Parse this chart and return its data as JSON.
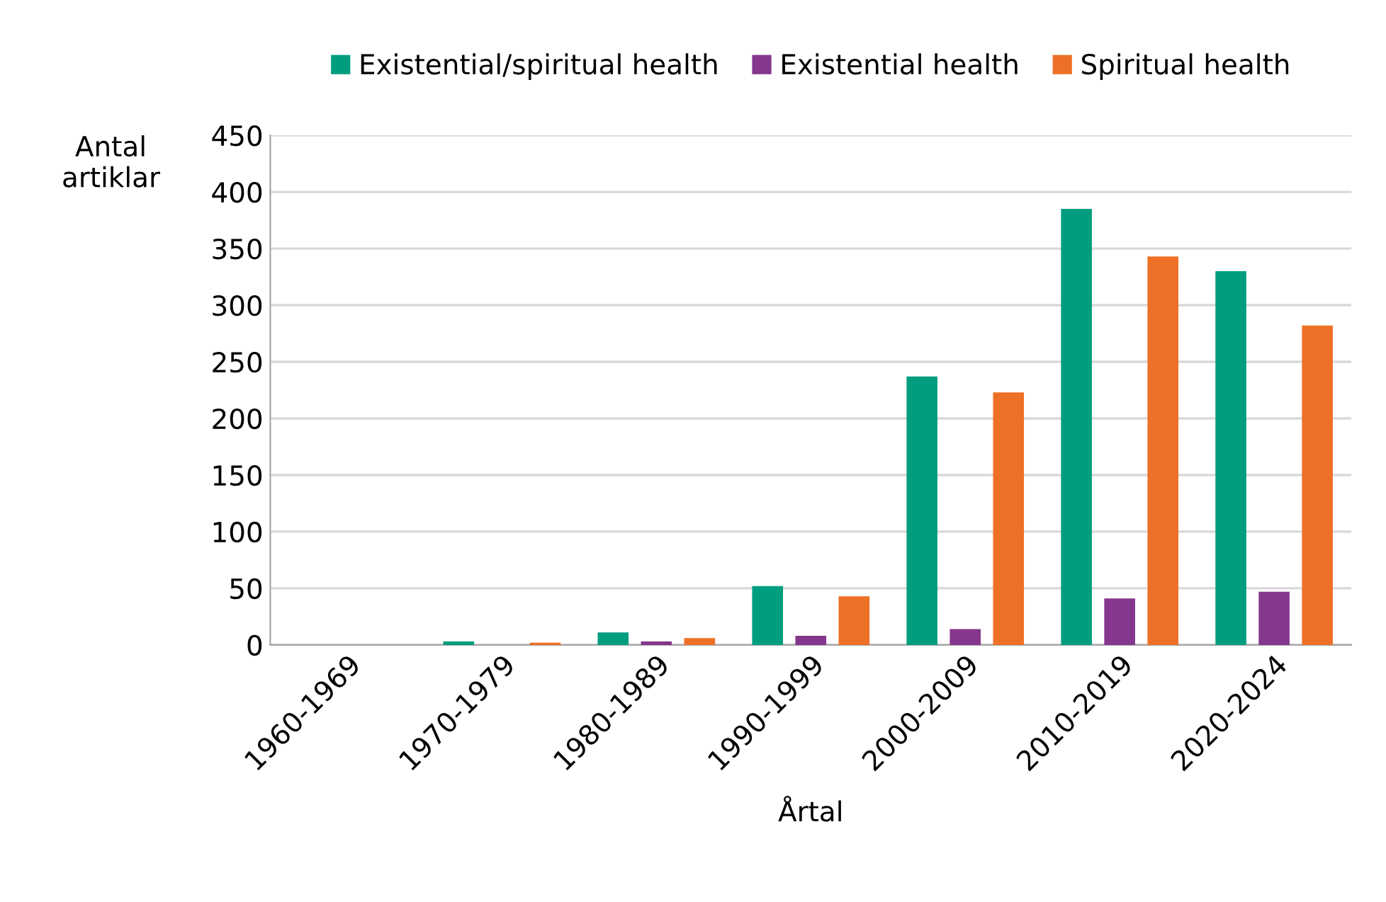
{
  "chart_data": {
    "type": "bar",
    "xlabel": "Årtal",
    "ylabel": "Antal\nartiklar",
    "categories": [
      "1960-1969",
      "1970-1979",
      "1980-1989",
      "1990-1999",
      "2000-2009",
      "2010-2019",
      "2020-2024"
    ],
    "series": [
      {
        "name": "Existential/spiritual health",
        "color": "#009e7e",
        "values": [
          0,
          3,
          11,
          52,
          237,
          385,
          330
        ]
      },
      {
        "name": "Existential health",
        "color": "#84378c",
        "values": [
          0,
          0,
          3,
          8,
          14,
          41,
          47
        ]
      },
      {
        "name": "Spiritual health",
        "color": "#ee7027",
        "values": [
          0,
          2,
          6,
          43,
          223,
          343,
          282
        ]
      }
    ],
    "ylim": [
      0,
      450
    ],
    "yticks": [
      0,
      50,
      100,
      150,
      200,
      250,
      300,
      350,
      400,
      450
    ],
    "grid": "y",
    "legend": "top"
  }
}
